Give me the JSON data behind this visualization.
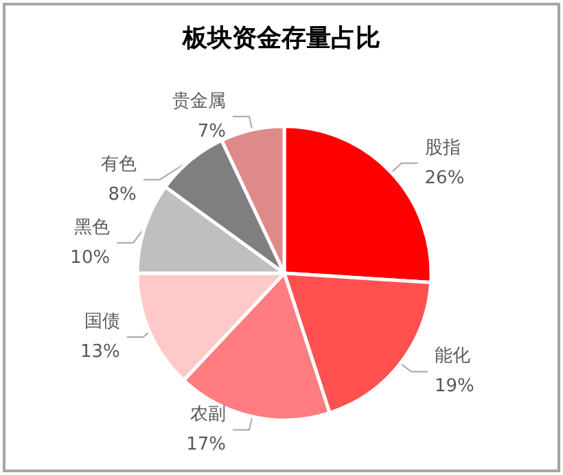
{
  "chart_data": {
    "type": "pie",
    "title": "板块资金存量占比",
    "categories": [
      "股指",
      "能化",
      "农副",
      "国债",
      "黑色",
      "有色",
      "贵金属"
    ],
    "values": [
      26,
      19,
      17,
      13,
      10,
      8,
      7
    ],
    "colors": [
      "#ff0000",
      "#ff5050",
      "#ff7c80",
      "#ffc9c9",
      "#bfbfbf",
      "#7f7f7f",
      "#de8a8a"
    ],
    "value_labels": [
      "26%",
      "19%",
      "17%",
      "13%",
      "10%",
      "8%",
      "7%"
    ],
    "legend": false
  }
}
